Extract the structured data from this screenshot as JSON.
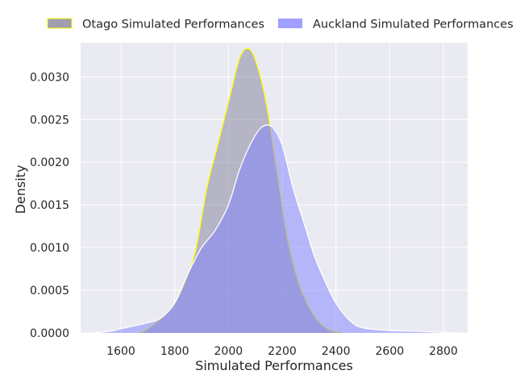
{
  "chart_data": {
    "type": "area",
    "title": "",
    "xlabel": "Simulated Performances",
    "ylabel": "Density",
    "xlim": [
      1450,
      2890
    ],
    "ylim": [
      0,
      0.0034
    ],
    "x_ticks": [
      1600,
      1800,
      2000,
      2200,
      2400,
      2600,
      2800
    ],
    "x_tick_labels": [
      "1600",
      "1800",
      "2000",
      "2200",
      "2400",
      "2600",
      "2800"
    ],
    "y_ticks": [
      0,
      0.0005,
      0.001,
      0.0015,
      0.002,
      0.0025,
      0.003
    ],
    "y_tick_labels": [
      "0.0000",
      "0.0005",
      "0.0010",
      "0.0015",
      "0.0020",
      "0.0025",
      "0.0030"
    ],
    "grid": true,
    "legend_position": "top-outside",
    "colors": {
      "plot_background": "#eaeaf2",
      "grid": "#ffffff",
      "text": "#262626"
    },
    "series": [
      {
        "name": "Otago Simulated Performances",
        "fill": "#7f7f97",
        "fill_opacity": 0.5,
        "stroke": "#ffff00",
        "points": [
          [
            1670,
            0
          ],
          [
            1700,
            5e-05
          ],
          [
            1760,
            0.0002
          ],
          [
            1800,
            0.00035
          ],
          [
            1840,
            0.0006
          ],
          [
            1880,
            0.001
          ],
          [
            1920,
            0.0017
          ],
          [
            1960,
            0.0022
          ],
          [
            2000,
            0.0027
          ],
          [
            2040,
            0.0032
          ],
          [
            2070,
            0.00333
          ],
          [
            2100,
            0.0032
          ],
          [
            2140,
            0.0027
          ],
          [
            2180,
            0.0019
          ],
          [
            2220,
            0.0011
          ],
          [
            2260,
            0.0006
          ],
          [
            2300,
            0.0003
          ],
          [
            2340,
            0.00012
          ],
          [
            2380,
            3e-05
          ],
          [
            2420,
            0
          ]
        ]
      },
      {
        "name": "Auckland Simulated Performances",
        "fill": "#7f7fff",
        "fill_opacity": 0.5,
        "stroke": "#ffffff",
        "points": [
          [
            1490,
            0
          ],
          [
            1560,
            2e-05
          ],
          [
            1600,
            5e-05
          ],
          [
            1700,
            0.00012
          ],
          [
            1750,
            0.00018
          ],
          [
            1800,
            0.00035
          ],
          [
            1850,
            0.0007
          ],
          [
            1900,
            0.001
          ],
          [
            1950,
            0.0012
          ],
          [
            2000,
            0.0015
          ],
          [
            2040,
            0.0019
          ],
          [
            2080,
            0.0022
          ],
          [
            2120,
            0.0024
          ],
          [
            2160,
            0.00242
          ],
          [
            2200,
            0.0022
          ],
          [
            2240,
            0.0017
          ],
          [
            2280,
            0.0013
          ],
          [
            2320,
            0.0009
          ],
          [
            2360,
            0.0006
          ],
          [
            2400,
            0.00035
          ],
          [
            2450,
            0.00015
          ],
          [
            2500,
            6e-05
          ],
          [
            2600,
            3e-05
          ],
          [
            2700,
            2e-05
          ],
          [
            2840,
            0
          ]
        ]
      }
    ]
  }
}
